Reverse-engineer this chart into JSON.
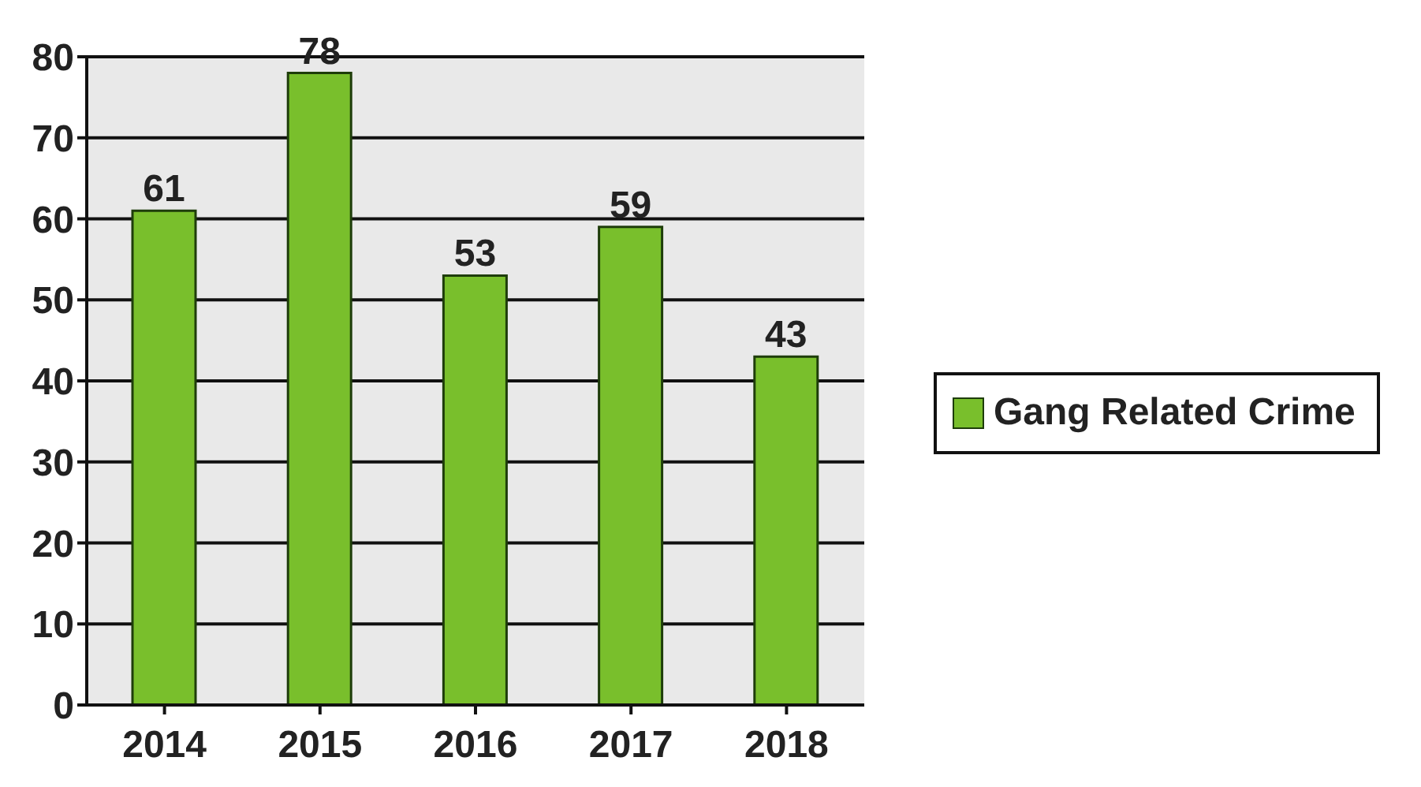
{
  "chart_data": {
    "type": "bar",
    "categories": [
      "2014",
      "2015",
      "2016",
      "2017",
      "2018"
    ],
    "series": [
      {
        "name": "Gang Related Crime",
        "color": "#79bf2c",
        "values": [
          61,
          78,
          53,
          59,
          43
        ]
      }
    ],
    "ylim": [
      0,
      80
    ],
    "yticks": [
      0,
      10,
      20,
      30,
      40,
      50,
      60,
      70,
      80
    ],
    "grid": "y",
    "legend": "right",
    "data_labels": true
  }
}
